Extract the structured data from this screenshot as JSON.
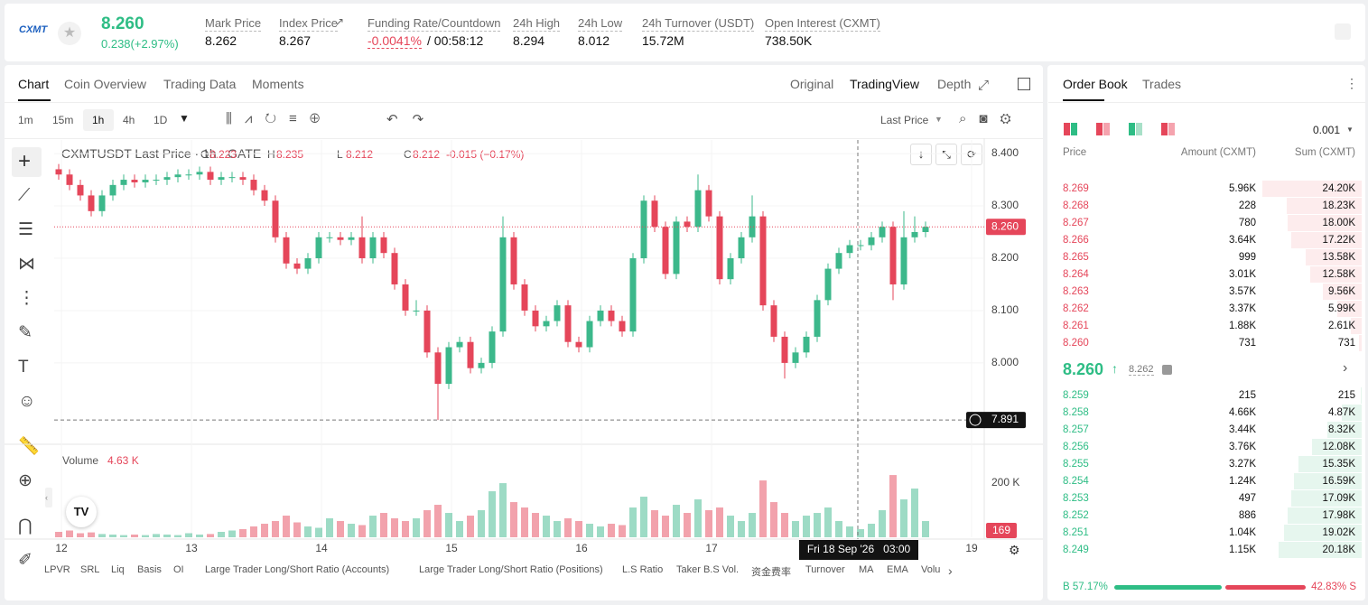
{
  "header": {
    "logo": "CXMT",
    "price": "8.260",
    "change": "0.238(+2.97%)",
    "stats": [
      {
        "label": "Mark Price",
        "value": "8.262"
      },
      {
        "label": "Index Price",
        "value": "8.267"
      },
      {
        "label": "Funding Rate/Countdown",
        "value": "-0.0041%",
        "extra": "/ 00:58:12"
      },
      {
        "label": "24h High",
        "value": "8.294"
      },
      {
        "label": "24h Low",
        "value": "8.012"
      },
      {
        "label": "24h Turnover (USDT)",
        "value": "15.72M"
      },
      {
        "label": "Open Interest (CXMT)",
        "value": "738.50K"
      }
    ]
  },
  "tabs": [
    "Chart",
    "Coin Overview",
    "Trading Data",
    "Moments"
  ],
  "views": [
    "Original",
    "TradingView",
    "Depth"
  ],
  "intervals": [
    "1m",
    "15m",
    "1h",
    "4h",
    "1D"
  ],
  "price_source": "Last Price",
  "indicators": [
    "LPVR",
    "SRL",
    "Liq",
    "Basis",
    "OI",
    "Large Trader Long/Short Ratio (Accounts)",
    "Large Trader Long/Short Ratio (Positions)",
    "L.S Ratio",
    "Taker B.S Vol.",
    "资金费率",
    "Turnover",
    "MA",
    "EMA",
    "Volu"
  ],
  "chart_data": {
    "type": "candlestick",
    "title": "CXMTUSDT Last Price · 1h · GATE",
    "legend": {
      "O": "8.223",
      "H": "8.235",
      "L": "8.212",
      "C": "8.212",
      "change": "-0.015 (−0.17%)"
    },
    "up_color": "#3cb88b",
    "down_color": "#e5465a",
    "grid": true,
    "open": [
      8.37,
      8.36,
      8.34,
      8.32,
      8.29,
      8.32,
      8.34,
      8.35,
      8.345,
      8.35,
      8.35,
      8.355,
      8.36,
      8.36,
      8.365,
      8.35,
      8.355,
      8.355,
      8.35,
      8.33,
      8.31,
      8.24,
      8.19,
      8.18,
      8.2,
      8.24,
      8.24,
      8.235,
      8.24,
      8.2,
      8.24,
      8.21,
      8.15,
      8.1,
      8.1,
      8.02,
      7.96,
      8.03,
      8.04,
      7.99,
      8.0,
      8.06,
      8.24,
      8.15,
      8.1,
      8.07,
      8.08,
      8.11,
      8.04,
      8.03,
      8.08,
      8.1,
      8.08,
      8.06,
      8.2,
      8.31,
      8.26,
      8.17,
      8.27,
      8.26,
      8.33,
      8.28,
      8.16,
      8.2,
      8.24,
      8.28,
      8.11,
      8.05,
      8.0,
      8.02,
      8.05,
      8.12,
      8.18,
      8.21,
      8.225,
      8.225,
      8.24,
      8.26,
      8.15,
      8.24,
      8.25
    ],
    "high": [
      8.38,
      8.37,
      8.35,
      8.33,
      8.33,
      8.35,
      8.36,
      8.36,
      8.36,
      8.36,
      8.365,
      8.37,
      8.37,
      8.375,
      8.375,
      8.365,
      8.365,
      8.365,
      8.36,
      8.34,
      8.32,
      8.25,
      8.2,
      8.21,
      8.25,
      8.25,
      8.25,
      8.25,
      8.28,
      8.25,
      8.25,
      8.22,
      8.16,
      8.12,
      8.11,
      8.03,
      8.04,
      8.05,
      8.05,
      8.01,
      8.07,
      8.28,
      8.25,
      8.16,
      8.11,
      8.09,
      8.12,
      8.12,
      8.05,
      8.09,
      8.11,
      8.11,
      8.09,
      8.21,
      8.32,
      8.32,
      8.27,
      8.28,
      8.28,
      8.36,
      8.34,
      8.29,
      8.21,
      8.25,
      8.32,
      8.29,
      8.12,
      8.06,
      8.03,
      8.06,
      8.13,
      8.19,
      8.22,
      8.235,
      8.235,
      8.25,
      8.27,
      8.27,
      8.29,
      8.28,
      8.27
    ],
    "low": [
      8.35,
      8.33,
      8.31,
      8.28,
      8.28,
      8.31,
      8.33,
      8.335,
      8.335,
      8.34,
      8.34,
      8.345,
      8.35,
      8.35,
      8.34,
      8.34,
      8.345,
      8.34,
      8.32,
      8.3,
      8.23,
      8.18,
      8.17,
      8.17,
      8.19,
      8.23,
      8.225,
      8.225,
      8.19,
      8.19,
      8.2,
      8.14,
      8.09,
      8.09,
      8.01,
      7.891,
      7.95,
      8.02,
      7.98,
      7.98,
      7.99,
      8.05,
      8.14,
      8.09,
      8.06,
      8.06,
      8.07,
      8.03,
      8.02,
      8.02,
      8.07,
      8.07,
      8.05,
      8.05,
      8.19,
      8.25,
      8.16,
      8.16,
      8.25,
      8.25,
      8.27,
      8.15,
      8.15,
      8.19,
      8.23,
      8.1,
      8.04,
      7.97,
      7.99,
      8.01,
      8.04,
      8.11,
      8.17,
      8.2,
      8.215,
      8.215,
      8.23,
      8.12,
      8.14,
      8.23,
      8.24
    ],
    "close": [
      8.36,
      8.34,
      8.32,
      8.29,
      8.32,
      8.34,
      8.35,
      8.345,
      8.35,
      8.35,
      8.355,
      8.36,
      8.36,
      8.365,
      8.35,
      8.355,
      8.355,
      8.35,
      8.33,
      8.31,
      8.24,
      8.19,
      8.18,
      8.2,
      8.24,
      8.24,
      8.235,
      8.24,
      8.2,
      8.24,
      8.21,
      8.15,
      8.1,
      8.1,
      8.02,
      7.96,
      8.03,
      8.04,
      7.99,
      8.0,
      8.06,
      8.24,
      8.15,
      8.1,
      8.07,
      8.08,
      8.11,
      8.04,
      8.03,
      8.08,
      8.1,
      8.08,
      8.06,
      8.2,
      8.31,
      8.26,
      8.17,
      8.27,
      8.26,
      8.33,
      8.28,
      8.16,
      8.2,
      8.24,
      8.28,
      8.11,
      8.05,
      8.0,
      8.02,
      8.05,
      8.12,
      8.18,
      8.21,
      8.225,
      8.225,
      8.24,
      8.26,
      8.15,
      8.24,
      8.25,
      8.26
    ],
    "ylim": [
      7.848,
      8.426
    ],
    "yticks": [
      {
        "value": 8.4,
        "label": "8.400"
      },
      {
        "value": 8.3,
        "label": "8.300"
      },
      {
        "value": 8.2,
        "label": "8.200"
      },
      {
        "value": 8.1,
        "label": "8.100"
      },
      {
        "value": 8.0,
        "label": "8.000"
      }
    ],
    "xlim": [
      11.944,
      19.097
    ],
    "xticks": [
      12,
      13,
      14,
      15,
      16,
      17,
      19
    ],
    "last_price": {
      "value": 8.26,
      "label": "8.260"
    },
    "cursor_price": {
      "value": 7.891,
      "label": "7.891"
    },
    "cursor_time": "Fri 18 Sep '26   03:00",
    "volume": {
      "title": "Volume",
      "current": "4.63 K",
      "values": [
        20,
        25,
        15,
        18,
        12,
        10,
        8,
        10,
        8,
        12,
        10,
        8,
        15,
        10,
        12,
        20,
        25,
        30,
        40,
        50,
        60,
        80,
        55,
        40,
        35,
        70,
        60,
        50,
        45,
        80,
        90,
        70,
        60,
        70,
        100,
        120,
        90,
        60,
        80,
        100,
        170,
        200,
        130,
        110,
        90,
        80,
        60,
        70,
        60,
        50,
        40,
        50,
        45,
        110,
        150,
        100,
        80,
        120,
        90,
        140,
        100,
        110,
        80,
        60,
        90,
        210,
        130,
        90,
        60,
        80,
        90,
        110,
        60,
        40,
        30,
        50,
        100,
        230,
        140,
        180,
        60
      ],
      "ylim": [
        0,
        327
      ],
      "yticks": [
        {
          "value": 200,
          "label": "200 K"
        }
      ],
      "last_label": "169"
    }
  },
  "order_book": {
    "tabs": [
      "Order Book",
      "Trades"
    ],
    "precision": "0.001",
    "columns": [
      "Price",
      "Amount (CXMT)",
      "Sum (CXMT)"
    ],
    "asks": [
      [
        "8.269",
        "5.96K",
        "24.20K"
      ],
      [
        "8.268",
        "228",
        "18.23K"
      ],
      [
        "8.267",
        "780",
        "18.00K"
      ],
      [
        "8.266",
        "3.64K",
        "17.22K"
      ],
      [
        "8.265",
        "999",
        "13.58K"
      ],
      [
        "8.264",
        "3.01K",
        "12.58K"
      ],
      [
        "8.263",
        "3.57K",
        "9.56K"
      ],
      [
        "8.262",
        "3.37K",
        "5.99K"
      ],
      [
        "8.261",
        "1.88K",
        "2.61K"
      ],
      [
        "8.260",
        "731",
        "731"
      ]
    ],
    "mid": {
      "price": "8.260",
      "mark": "8.262"
    },
    "bids": [
      [
        "8.259",
        "215",
        "215"
      ],
      [
        "8.258",
        "4.66K",
        "4.87K"
      ],
      [
        "8.257",
        "3.44K",
        "8.32K"
      ],
      [
        "8.256",
        "3.76K",
        "12.08K"
      ],
      [
        "8.255",
        "3.27K",
        "15.35K"
      ],
      [
        "8.254",
        "1.24K",
        "16.59K"
      ],
      [
        "8.253",
        "497",
        "17.09K"
      ],
      [
        "8.252",
        "886",
        "17.98K"
      ],
      [
        "8.251",
        "1.04K",
        "19.02K"
      ],
      [
        "8.249",
        "1.15K",
        "20.18K"
      ]
    ],
    "ratio": {
      "buy": "B 57.17%",
      "sell": "42.83% S"
    }
  }
}
